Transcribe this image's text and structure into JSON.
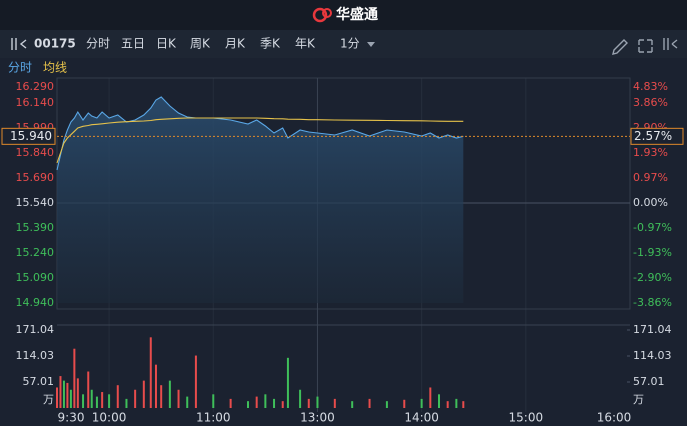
{
  "header": {
    "brand": "华盛通"
  },
  "toolbar": {
    "code": "00175",
    "tabs": [
      "分时",
      "五日",
      "日K",
      "周K",
      "月K",
      "季K",
      "年K"
    ],
    "interval": "1分"
  },
  "chart_data": {
    "type": "line",
    "x": [
      "9:30",
      "9:32",
      "9:34",
      "9:36",
      "9:38",
      "9:40",
      "9:42",
      "9:45",
      "9:48",
      "9:50",
      "9:53",
      "9:56",
      "10:00",
      "10:05",
      "10:10",
      "10:15",
      "10:20",
      "10:24",
      "10:27",
      "10:30",
      "10:35",
      "10:40",
      "10:45",
      "10:50",
      "11:00",
      "11:10",
      "11:20",
      "11:25",
      "11:30",
      "11:35",
      "11:40",
      "11:43",
      "11:50",
      "11:55",
      "13:00",
      "13:10",
      "13:20",
      "13:30",
      "13:40",
      "13:50",
      "14:00",
      "14:05",
      "14:10",
      "14:15",
      "14:20",
      "14:24"
    ],
    "series": [
      {
        "name": "分时",
        "color": "#5aa7e6",
        "values": [
          15.738,
          15.828,
          15.918,
          15.978,
          16.026,
          16.05,
          16.086,
          16.038,
          16.08,
          16.062,
          16.05,
          16.086,
          16.05,
          16.068,
          16.026,
          16.038,
          16.068,
          16.11,
          16.158,
          16.176,
          16.122,
          16.08,
          16.056,
          16.05,
          16.05,
          16.038,
          16.014,
          16.038,
          16.002,
          15.96,
          15.99,
          15.93,
          15.978,
          15.966,
          15.96,
          15.948,
          15.978,
          15.942,
          15.978,
          15.966,
          15.942,
          15.96,
          15.93,
          15.948,
          15.93,
          15.94
        ]
      },
      {
        "name": "均线",
        "color": "#e6c24a",
        "values": [
          15.78,
          15.84,
          15.9,
          15.93,
          15.95,
          15.97,
          15.99,
          16.0,
          16.005,
          16.01,
          16.012,
          16.015,
          16.02,
          16.025,
          16.028,
          16.03,
          16.032,
          16.035,
          16.04,
          16.042,
          16.045,
          16.048,
          16.05,
          16.05,
          16.05,
          16.05,
          16.05,
          16.05,
          16.048,
          16.046,
          16.045,
          16.043,
          16.042,
          16.04,
          16.04,
          16.038,
          16.037,
          16.036,
          16.035,
          16.034,
          16.033,
          16.032,
          16.031,
          16.03,
          16.03,
          16.03
        ]
      }
    ],
    "ylim": [
      14.94,
      16.29
    ],
    "yticks": [
      {
        "value": 14.94,
        "label": "14.940"
      },
      {
        "value": 15.09,
        "label": "15.090"
      },
      {
        "value": 15.24,
        "label": "15.240"
      },
      {
        "value": 15.39,
        "label": "15.390"
      },
      {
        "value": 15.54,
        "label": "15.540"
      },
      {
        "value": 15.69,
        "label": "15.690"
      },
      {
        "value": 15.84,
        "label": "15.840"
      },
      {
        "value": 15.99,
        "label": "15.990"
      },
      {
        "value": 16.14,
        "label": "16.140"
      },
      {
        "value": 16.29,
        "label": "16.290"
      }
    ],
    "y2lim": [
      -3.86,
      4.83
    ],
    "y2ticks": [
      {
        "value": -3.86,
        "label": "-3.86%"
      },
      {
        "value": -2.9,
        "label": "-2.90%"
      },
      {
        "value": -1.93,
        "label": "-1.93%"
      },
      {
        "value": -0.97,
        "label": "-0.97%"
      },
      {
        "value": 0,
        "label": "0.00%"
      },
      {
        "value": 0.97,
        "label": "0.97%"
      },
      {
        "value": 1.93,
        "label": "1.93%"
      },
      {
        "value": 2.9,
        "label": "2.90%"
      },
      {
        "value": 3.86,
        "label": "3.86%"
      },
      {
        "value": 4.83,
        "label": "4.83%"
      }
    ],
    "xticks": [
      "9:30",
      "10:00",
      "11:00",
      "13:00",
      "14:00",
      "15:00",
      "16:00"
    ],
    "last_price": 15.94,
    "last_price_label": "15.940",
    "last_change": 2.57,
    "last_change_label": "2.57%",
    "volume": {
      "type": "bar",
      "values": [
        45,
        70,
        60,
        55,
        40,
        130,
        65,
        30,
        80,
        40,
        25,
        35,
        30,
        50,
        20,
        40,
        60,
        155,
        95,
        50,
        60,
        40,
        25,
        115,
        30,
        20,
        15,
        25,
        30,
        20,
        15,
        110,
        40,
        20,
        25,
        20,
        15,
        20,
        15,
        18,
        20,
        45,
        30,
        15,
        20,
        15
      ],
      "colors": [
        "#e84c4c",
        "#e84c4c",
        "#3fbf5a",
        "#e84c4c",
        "#3fbf5a",
        "#e84c4c",
        "#e84c4c",
        "#3fbf5a",
        "#e84c4c",
        "#3fbf5a",
        "#3fbf5a",
        "#e84c4c",
        "#3fbf5a",
        "#e84c4c",
        "#3fbf5a",
        "#e84c4c",
        "#e84c4c",
        "#e84c4c",
        "#e84c4c",
        "#e84c4c",
        "#3fbf5a",
        "#e84c4c",
        "#3fbf5a",
        "#e84c4c",
        "#3fbf5a",
        "#e84c4c",
        "#3fbf5a",
        "#e84c4c",
        "#3fbf5a",
        "#3fbf5a",
        "#e84c4c",
        "#3fbf5a",
        "#3fbf5a",
        "#e84c4c",
        "#3fbf5a",
        "#e84c4c",
        "#3fbf5a",
        "#e84c4c",
        "#3fbf5a",
        "#e84c4c",
        "#3fbf5a",
        "#e84c4c",
        "#3fbf5a",
        "#e84c4c",
        "#3fbf5a",
        "#e84c4c"
      ],
      "ylim": [
        0,
        171.04
      ],
      "yticks": [
        57.01,
        114.03,
        171.04
      ],
      "unit": "万"
    }
  }
}
